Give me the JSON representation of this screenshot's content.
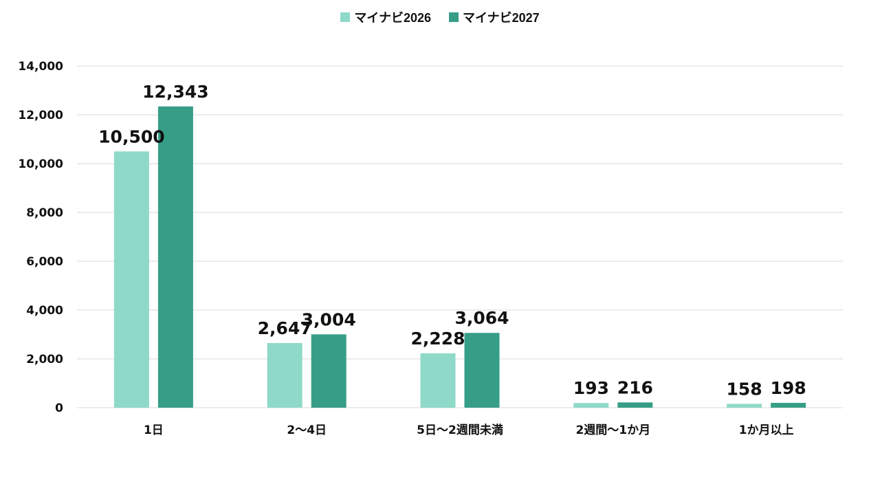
{
  "chart_data": {
    "type": "bar",
    "categories": [
      "1日",
      "2～4日",
      "5日～2週間未満",
      "2週間～1か月",
      "1か月以上"
    ],
    "series": [
      {
        "name": "マイナビ2026",
        "color": "#8fd9c8",
        "values": [
          10500,
          2647,
          2228,
          193,
          158
        ]
      },
      {
        "name": "マイナビ2027",
        "color": "#369e86",
        "values": [
          12343,
          3004,
          3064,
          216,
          198
        ]
      }
    ],
    "data_labels": [
      [
        "10,500",
        "2,647",
        "2,228",
        "193",
        "158"
      ],
      [
        "12,343",
        "3,004",
        "3,064",
        "216",
        "198"
      ]
    ],
    "yticks": [
      0,
      2000,
      4000,
      6000,
      8000,
      10000,
      12000,
      14000
    ],
    "ytick_labels": [
      "0",
      "2,000",
      "4,000",
      "6,000",
      "8,000",
      "10,000",
      "12,000",
      "14,000"
    ],
    "ylim": [
      0,
      14000
    ],
    "grid": true,
    "legend_position": "top-center",
    "gridline_color": "#d9d9d9"
  }
}
